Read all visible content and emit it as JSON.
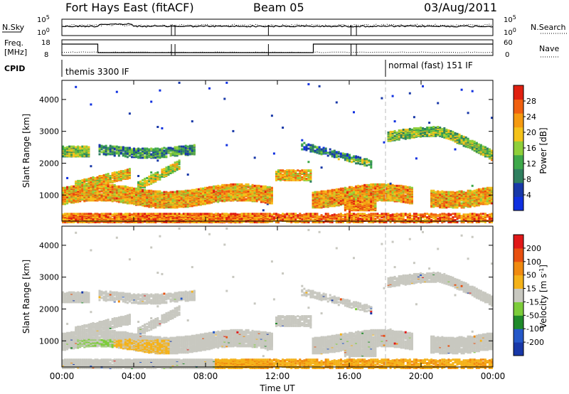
{
  "header": {
    "station": "Fort Hays East (fitACF)",
    "beam": "Beam 05",
    "date": "03/Aug/2011"
  },
  "top_panels": {
    "nsky_label": "N.Sky",
    "nsky_ticks": [
      "10^5",
      "10^0"
    ],
    "nsearch_label": "N.Search",
    "nsearch_ticks": [
      "10^5",
      "10^0"
    ],
    "freq_label": "Freq.",
    "freq_unit": "[MHz]",
    "freq_ticks": [
      "18",
      "8"
    ],
    "nave_label": "Nave",
    "nave_ticks": [
      "60",
      "0"
    ],
    "cpid_label": "CPID",
    "cpid_segments": [
      {
        "name": "themis 3300 IF",
        "start_hour": 0,
        "end_hour": 18
      },
      {
        "name": "normal (fast) 151 IF",
        "start_hour": 18,
        "end_hour": 24
      }
    ]
  },
  "colors": {
    "power": [
      "#1030e0",
      "#1838a8",
      "#2f7f5f",
      "#3ea84a",
      "#8fcf3a",
      "#f4c21a",
      "#f59a10",
      "#f06010",
      "#e02010"
    ],
    "velocity": [
      "#1838a8",
      "#2558c8",
      "#1f8a2a",
      "#7ccc3a",
      "#c8c8c0",
      "#f4b21a",
      "#f08a10",
      "#e85010",
      "#e01818"
    ]
  },
  "chart_data": [
    {
      "type": "heatmap",
      "name": "power",
      "xlabel": "",
      "ylabel": "Slant Range [km]",
      "x_range_hours": [
        0,
        24
      ],
      "ylim": [
        180,
        4600
      ],
      "y_ticks": [
        "1000",
        "2000",
        "3000",
        "4000"
      ],
      "colorbar_label": "Power [dB]",
      "colorbar_ticks": [
        "4",
        "8",
        "12",
        "16",
        "20",
        "24",
        "28"
      ],
      "colorbar_range": [
        0,
        32
      ]
    },
    {
      "type": "heatmap",
      "name": "velocity",
      "xlabel": "Time UT",
      "ylabel": "Slant Range [km]",
      "x_range_hours": [
        0,
        24
      ],
      "x_ticks": [
        "00:00",
        "04:00",
        "08:00",
        "12:00",
        "16:00",
        "20:00",
        "00:00"
      ],
      "ylim": [
        180,
        4600
      ],
      "y_ticks": [
        "1000",
        "2000",
        "3000",
        "4000"
      ],
      "colorbar_label": "Velocity [m s",
      "colorbar_label_sup": "-1",
      "colorbar_label_end": "]",
      "colorbar_ticks": [
        "200",
        "100",
        "50",
        "15",
        "-15",
        "-50",
        "-100",
        "-200"
      ]
    }
  ]
}
